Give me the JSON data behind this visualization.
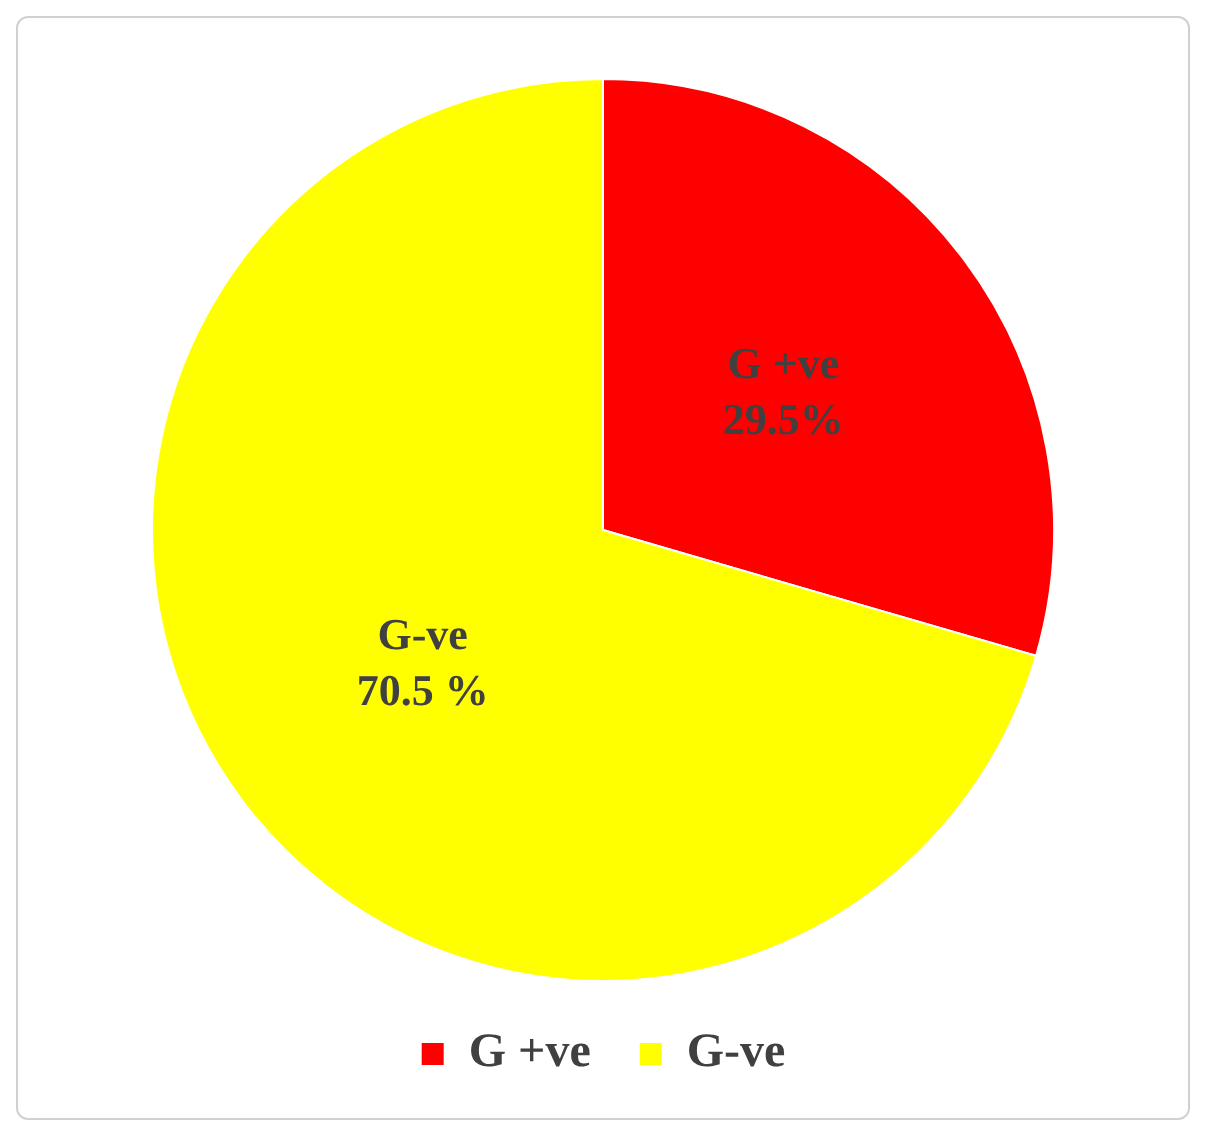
{
  "chart_data": {
    "type": "pie",
    "categories": [
      "G +ve",
      "G-ve"
    ],
    "values": [
      29.5,
      70.5
    ],
    "value_labels": [
      "29.5%",
      "70.5 %"
    ],
    "colors": [
      "#ff0000",
      "#ffff00"
    ],
    "legend": "bottom"
  }
}
